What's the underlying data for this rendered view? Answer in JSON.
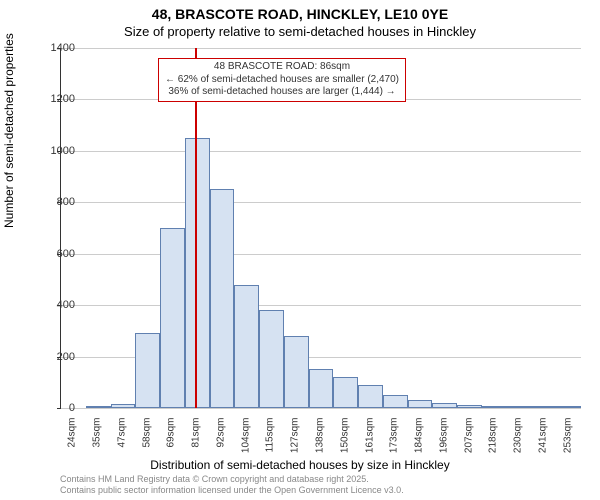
{
  "chart": {
    "type": "histogram",
    "title": "48, BRASCOTE ROAD, HINCKLEY, LE10 0YE",
    "subtitle": "Size of property relative to semi-detached houses in Hinckley",
    "ylabel": "Number of semi-detached properties",
    "xlabel": "Distribution of semi-detached houses by size in Hinckley",
    "background_color": "#ffffff",
    "grid_color": "#cccccc",
    "bar_fill": "#d6e2f2",
    "bar_stroke": "#6080b0",
    "marker_color": "#cc0000",
    "ylim": [
      0,
      1400
    ],
    "ytick_step": 200,
    "yticks": [
      0,
      200,
      400,
      600,
      800,
      1000,
      1200,
      1400
    ],
    "xticks": [
      "24sqm",
      "35sqm",
      "47sqm",
      "58sqm",
      "69sqm",
      "81sqm",
      "92sqm",
      "104sqm",
      "115sqm",
      "127sqm",
      "138sqm",
      "150sqm",
      "161sqm",
      "173sqm",
      "184sqm",
      "196sqm",
      "207sqm",
      "218sqm",
      "230sqm",
      "241sqm",
      "253sqm"
    ],
    "values": [
      0,
      5,
      15,
      290,
      700,
      1050,
      850,
      480,
      380,
      280,
      150,
      120,
      90,
      50,
      30,
      20,
      10,
      8,
      5,
      2,
      2
    ],
    "marker_position": 86,
    "x_min": 24,
    "x_max": 265,
    "label_fontsize": 12,
    "tick_fontsize": 10,
    "annotation": {
      "line1": "48 BRASCOTE ROAD: 86sqm",
      "line2": "← 62% of semi-detached houses are smaller (2,470)",
      "line3": "36% of semi-detached houses are larger (1,444) →",
      "border_color": "#cc0000"
    },
    "footer1": "Contains HM Land Registry data © Crown copyright and database right 2025.",
    "footer2": "Contains public sector information licensed under the Open Government Licence v3.0."
  }
}
